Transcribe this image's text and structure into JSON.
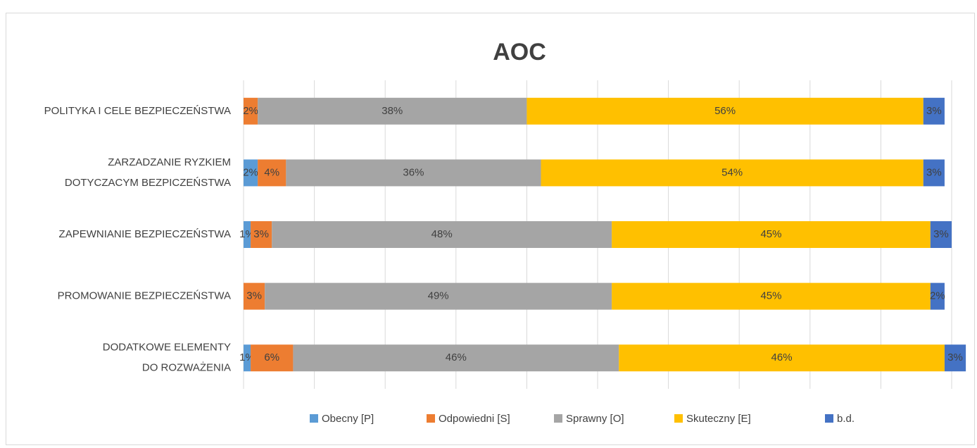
{
  "chart_data": {
    "type": "stacked-barh",
    "title": "AOC",
    "categories": [
      [
        "POLITYKA I CELE BEZPIECZEŃSTWA"
      ],
      [
        "ZARZADZANIE RYZKIEM",
        "DOTYCZACYM BEZPICZEŃSTWA"
      ],
      [
        "ZAPEWNIANIE BEZPIECZEŃSTWA"
      ],
      [
        "PROMOWANIE BEZPIECZEŃSTWA"
      ],
      [
        "DODATKOWE ELEMENTY",
        "DO ROZWAŻENIA"
      ]
    ],
    "series": [
      {
        "name": "Obecny [P]",
        "color": "#5b9bd5",
        "values": [
          null,
          2,
          1,
          null,
          1
        ],
        "value_labels": [
          null,
          "2%",
          "1%",
          null,
          "1%"
        ]
      },
      {
        "name": "Odpowiedni [S]",
        "color": "#ed7d31",
        "values": [
          2,
          4,
          3,
          3,
          6
        ],
        "value_labels": [
          "2%",
          "4%",
          "3%",
          "3%",
          "6%"
        ]
      },
      {
        "name": "Sprawny [O]",
        "color": "#a5a5a5",
        "values": [
          38,
          36,
          48,
          49,
          46
        ],
        "value_labels": [
          "38%",
          "36%",
          "48%",
          "49%",
          "46%"
        ]
      },
      {
        "name": "Skuteczny [E]",
        "color": "#ffc000",
        "values": [
          56,
          54,
          45,
          45,
          46
        ],
        "value_labels": [
          "56%",
          "54%",
          "45%",
          "45%",
          "46%"
        ]
      },
      {
        "name": "b.d.",
        "color": "#4472c4",
        "values": [
          3,
          3,
          3,
          2,
          3
        ],
        "value_labels": [
          "3%",
          "3%",
          "3%",
          "2%",
          "3%"
        ]
      }
    ],
    "xlim": [
      0,
      100
    ],
    "xticks": [
      0,
      10,
      20,
      30,
      40,
      50,
      60,
      70,
      80,
      90,
      100
    ],
    "grid": true,
    "legend": "bottom"
  }
}
